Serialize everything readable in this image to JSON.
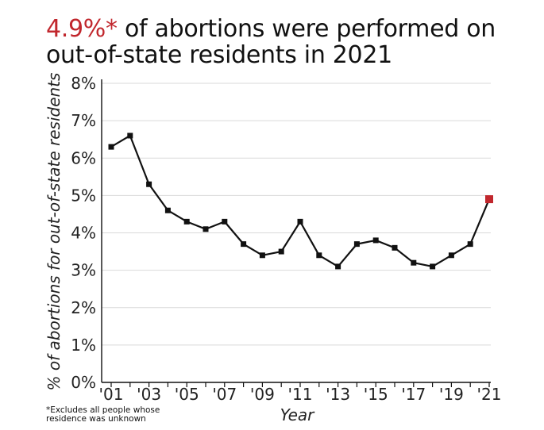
{
  "title": {
    "highlight": "4.9%*",
    "rest": " of abortions were performed on out-of-state residents in 2021"
  },
  "footnote": {
    "line1": "*Excludes all people whose",
    "line2": "residence was unknown"
  },
  "colors": {
    "line": "#111111",
    "highlight": "#c1272d",
    "grid": "#d9d9d9"
  },
  "chart_data": {
    "type": "line",
    "title": "4.9%* of abortions were performed on out-of-state residents in 2021",
    "xlabel": "Year",
    "ylabel": "% of abortions for out-of-state residents",
    "ylim": [
      0,
      8
    ],
    "xlim": [
      2001,
      2021
    ],
    "grid": true,
    "y_ticks": [
      "0%",
      "1%",
      "2%",
      "3%",
      "4%",
      "5%",
      "6%",
      "7%",
      "8%"
    ],
    "x_ticks": [
      {
        "year": 2001,
        "label": "'01"
      },
      {
        "year": 2003,
        "label": "'03"
      },
      {
        "year": 2005,
        "label": "'05"
      },
      {
        "year": 2007,
        "label": "'07"
      },
      {
        "year": 2009,
        "label": "'09"
      },
      {
        "year": 2011,
        "label": "'11"
      },
      {
        "year": 2013,
        "label": "'13"
      },
      {
        "year": 2015,
        "label": "'15"
      },
      {
        "year": 2017,
        "label": "'17"
      },
      {
        "year": 2019,
        "label": "'19"
      },
      {
        "year": 2021,
        "label": "'21"
      }
    ],
    "x": [
      2001,
      2002,
      2003,
      2004,
      2005,
      2006,
      2007,
      2008,
      2009,
      2010,
      2011,
      2012,
      2013,
      2014,
      2015,
      2016,
      2017,
      2018,
      2019,
      2020,
      2021
    ],
    "series": [
      {
        "values": [
          6.3,
          6.6,
          5.3,
          4.6,
          4.3,
          4.1,
          4.3,
          3.7,
          3.4,
          3.5,
          4.3,
          3.4,
          3.1,
          3.7,
          3.8,
          3.6,
          3.2,
          3.1,
          3.4,
          3.7,
          4.9
        ]
      }
    ],
    "highlight_year": 2021
  }
}
